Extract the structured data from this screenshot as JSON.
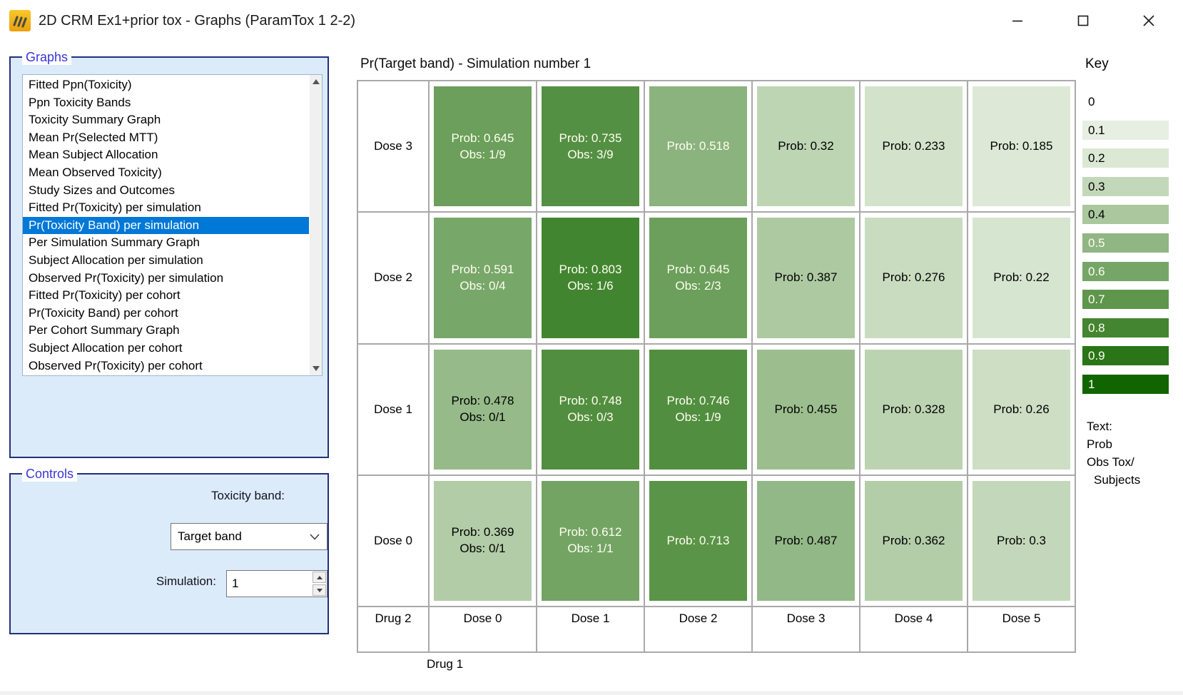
{
  "window": {
    "title": "2D CRM Ex1+prior tox - Graphs (ParamTox 1 2-2)"
  },
  "graphs_panel": {
    "title": "Graphs",
    "selected_index": 8,
    "items": [
      "Fitted Ppn(Toxicity)",
      "Ppn Toxicity Bands",
      "Toxicity Summary Graph",
      "Mean Pr(Selected MTT)",
      "Mean Subject Allocation",
      "Mean Observed Toxicity)",
      "Study Sizes and Outcomes",
      "Fitted Pr(Toxicity) per simulation",
      "Pr(Toxicity Band) per simulation",
      "Per Simulation Summary Graph",
      "Subject Allocation per simulation",
      "Observed Pr(Toxicity) per simulation",
      "Fitted Pr(Toxicity) per cohort",
      "Pr(Toxicity Band) per cohort",
      "Per Cohort Summary Graph",
      "Subject Allocation per cohort",
      "Observed Pr(Toxicity) per cohort"
    ]
  },
  "controls_panel": {
    "title": "Controls",
    "toxicity_band_label": "Toxicity band:",
    "toxicity_band_value": "Target band",
    "simulation_label": "Simulation:",
    "simulation_value": "1"
  },
  "chart_data": {
    "type": "heatmap",
    "title": "Pr(Target band) - Simulation number 1",
    "x_axis_label": "Drug 1",
    "corner_label": "Drug 2",
    "columns": [
      "Dose 0",
      "Dose 1",
      "Dose 2",
      "Dose 3",
      "Dose 4",
      "Dose 5"
    ],
    "rows": [
      {
        "label": "Dose 3",
        "cells": [
          {
            "prob": 0.645,
            "obs": "1/9"
          },
          {
            "prob": 0.735,
            "obs": "3/9"
          },
          {
            "prob": 0.518
          },
          {
            "prob": 0.32
          },
          {
            "prob": 0.233
          },
          {
            "prob": 0.185
          }
        ]
      },
      {
        "label": "Dose 2",
        "cells": [
          {
            "prob": 0.591,
            "obs": "0/4"
          },
          {
            "prob": 0.803,
            "obs": "1/6"
          },
          {
            "prob": 0.645,
            "obs": "2/3"
          },
          {
            "prob": 0.387
          },
          {
            "prob": 0.276
          },
          {
            "prob": 0.22
          }
        ]
      },
      {
        "label": "Dose 1",
        "cells": [
          {
            "prob": 0.478,
            "obs": "0/1"
          },
          {
            "prob": 0.748,
            "obs": "0/3"
          },
          {
            "prob": 0.746,
            "obs": "1/9"
          },
          {
            "prob": 0.455
          },
          {
            "prob": 0.328
          },
          {
            "prob": 0.26
          }
        ]
      },
      {
        "label": "Dose 0",
        "cells": [
          {
            "prob": 0.369,
            "obs": "0/1"
          },
          {
            "prob": 0.612,
            "obs": "1/1"
          },
          {
            "prob": 0.713
          },
          {
            "prob": 0.487
          },
          {
            "prob": 0.362
          },
          {
            "prob": 0.3
          }
        ]
      }
    ],
    "cell_text": {
      "prob_prefix": "Prob: ",
      "obs_prefix": "Obs: "
    },
    "key": {
      "title": "Key",
      "stops": [
        {
          "label": "0",
          "value": 0,
          "color": "#ffffff"
        },
        {
          "label": "0.1",
          "value": 0.1,
          "color": "#e7efe2"
        },
        {
          "label": "0.2",
          "value": 0.2,
          "color": "#dbe8d4"
        },
        {
          "label": "0.3",
          "value": 0.3,
          "color": "#c3d8ba"
        },
        {
          "label": "0.4",
          "value": 0.4,
          "color": "#aac79e"
        },
        {
          "label": "0.5",
          "value": 0.5,
          "color": "#90b683"
        },
        {
          "label": "0.6",
          "value": 0.6,
          "color": "#76a667"
        },
        {
          "label": "0.7",
          "value": 0.7,
          "color": "#5d964c"
        },
        {
          "label": "0.8",
          "value": 0.8,
          "color": "#438531"
        },
        {
          "label": "0.9",
          "value": 0.9,
          "color": "#2a7517"
        },
        {
          "label": "1",
          "value": 1,
          "color": "#106500"
        }
      ]
    },
    "note_lines": [
      "Text:",
      "Prob",
      "Obs Tox/",
      "Subjects"
    ]
  },
  "colors": {
    "selection": "#0078d7",
    "panel_fill": "#dcebf9",
    "panel_border": "#22307c",
    "label_blue": "#3936d5",
    "grid_line": "#a9a9a9",
    "heat_text_light": "#fffef0",
    "heat_text_dark": "#000000",
    "icon_gold": "#f2b118"
  }
}
